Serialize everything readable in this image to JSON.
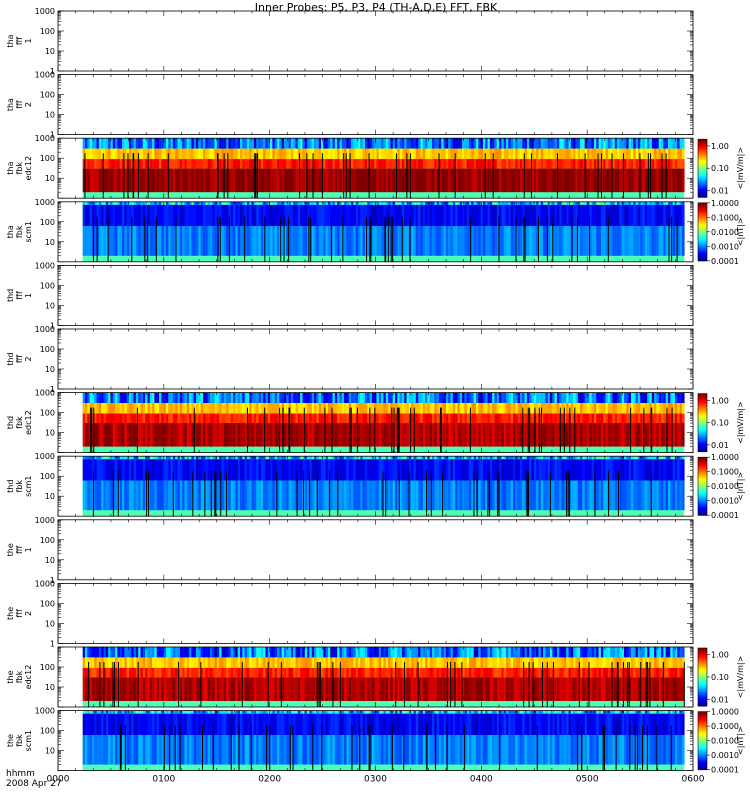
{
  "chart_data": {
    "type": "heatmap",
    "title": "Inner Probes: P5, P3, P4 (TH-A,D,E) FFT, FBK",
    "x_axis": {
      "tick_labels": [
        "0000",
        "0100",
        "0200",
        "0300",
        "0400",
        "0500",
        "0600"
      ],
      "range_hhmm": [
        "0000",
        "0600"
      ],
      "label_line1": "hhmm",
      "label_line2": "2008 Apr 27"
    },
    "y_axis": {
      "scale": "log",
      "range": [
        1,
        1000
      ],
      "tick_labels": [
        "1000",
        "100",
        "10",
        "1"
      ]
    },
    "colorbars": {
      "edc12": {
        "scale": "log",
        "range": [
          0.005,
          2
        ],
        "tick_labels": [
          "1.00",
          "0.10",
          "0.01"
        ],
        "label": "<|mV/m|>"
      },
      "scm1": {
        "scale": "log",
        "range": [
          0.0001,
          1
        ],
        "tick_labels": [
          "1.0000",
          "0.1000",
          "0.0100",
          "0.0010",
          "0.0001"
        ],
        "label": "<|nT|>"
      }
    },
    "panels": [
      {
        "label": [
          "tha",
          "fff",
          "1"
        ],
        "kind": "empty",
        "y_ticks": [
          "1000",
          "100",
          "10",
          "1"
        ]
      },
      {
        "label": [
          "tha",
          "fff",
          "2"
        ],
        "kind": "empty",
        "y_ticks": [
          "1000",
          "100",
          "10",
          "1"
        ]
      },
      {
        "label": [
          "tha",
          "fbk",
          "edc12"
        ],
        "kind": "edc12",
        "y_ticks": [
          "1000",
          "100",
          "10"
        ],
        "data_start_hhmm": "0014",
        "data_end_hhmm": "0555",
        "band_levels": [
          {
            "freq_range": [
              300,
              1000
            ],
            "level_mV_per_m": 0.02
          },
          {
            "freq_range": [
              90,
              300
            ],
            "level_mV_per_m": 0.3
          },
          {
            "freq_range": [
              30,
              90
            ],
            "level_mV_per_m": 0.8
          },
          {
            "freq_range": [
              2,
              30
            ],
            "level_mV_per_m": 1.8
          }
        ]
      },
      {
        "label": [
          "tha",
          "fbk",
          "scm1"
        ],
        "kind": "scm1",
        "y_ticks": [
          "1000",
          "100",
          "10"
        ],
        "data_start_hhmm": "0014",
        "data_end_hhmm": "0555",
        "band_levels": [
          {
            "freq_range": [
              700,
              2000
            ],
            "level_nT": 0.002
          },
          {
            "freq_range": [
              60,
              700
            ],
            "level_nT": 0.0003
          },
          {
            "freq_range": [
              2,
              60
            ],
            "level_nT": 0.001
          }
        ]
      },
      {
        "label": [
          "thd",
          "fff",
          "1"
        ],
        "kind": "empty",
        "y_ticks": [
          "1000",
          "100",
          "10",
          "1"
        ]
      },
      {
        "label": [
          "thd",
          "fff",
          "2"
        ],
        "kind": "empty",
        "y_ticks": [
          "1000",
          "100",
          "10",
          "1"
        ]
      },
      {
        "label": [
          "thd",
          "fbk",
          "edc12"
        ],
        "kind": "edc12",
        "y_ticks": [
          "1000",
          "100",
          "10"
        ],
        "data_start_hhmm": "0014",
        "data_end_hhmm": "0555",
        "band_levels": [
          {
            "freq_range": [
              300,
              1000
            ],
            "level_mV_per_m": 0.02
          },
          {
            "freq_range": [
              90,
              300
            ],
            "level_mV_per_m": 0.3
          },
          {
            "freq_range": [
              30,
              90
            ],
            "level_mV_per_m": 0.8
          },
          {
            "freq_range": [
              2,
              30
            ],
            "level_mV_per_m": 1.5
          }
        ]
      },
      {
        "label": [
          "thd",
          "fbk",
          "scm1"
        ],
        "kind": "scm1",
        "y_ticks": [
          "1000",
          "100",
          "10"
        ],
        "data_start_hhmm": "0014",
        "data_end_hhmm": "0555",
        "band_levels": [
          {
            "freq_range": [
              700,
              2000
            ],
            "level_nT": 0.002
          },
          {
            "freq_range": [
              60,
              700
            ],
            "level_nT": 0.0003
          },
          {
            "freq_range": [
              2,
              60
            ],
            "level_nT": 0.001
          }
        ]
      },
      {
        "label": [
          "the",
          "fff",
          "1"
        ],
        "kind": "empty",
        "y_ticks": [
          "1000",
          "100",
          "10",
          "1"
        ]
      },
      {
        "label": [
          "the",
          "fff",
          "2"
        ],
        "kind": "empty",
        "y_ticks": [
          "1000",
          "100",
          "10",
          "1"
        ]
      },
      {
        "label": [
          "the",
          "fbk",
          "edc12"
        ],
        "kind": "edc12",
        "y_ticks": [
          "100",
          "10"
        ],
        "data_start_hhmm": "0014",
        "data_end_hhmm": "0555",
        "band_levels": [
          {
            "freq_range": [
              300,
              1000
            ],
            "level_mV_per_m": 0.02
          },
          {
            "freq_range": [
              90,
              300
            ],
            "level_mV_per_m": 0.3
          },
          {
            "freq_range": [
              30,
              90
            ],
            "level_mV_per_m": 0.8
          },
          {
            "freq_range": [
              2,
              30
            ],
            "level_mV_per_m": 1.5
          }
        ]
      },
      {
        "label": [
          "the",
          "fbk",
          "scm1"
        ],
        "kind": "scm1",
        "y_ticks": [
          "1000",
          "100",
          "10"
        ],
        "data_start_hhmm": "0014",
        "data_end_hhmm": "0555",
        "band_levels": [
          {
            "freq_range": [
              700,
              2000
            ],
            "level_nT": 0.002
          },
          {
            "freq_range": [
              60,
              700
            ],
            "level_nT": 0.0003
          },
          {
            "freq_range": [
              2,
              60
            ],
            "level_nT": 0.001
          }
        ]
      }
    ]
  }
}
